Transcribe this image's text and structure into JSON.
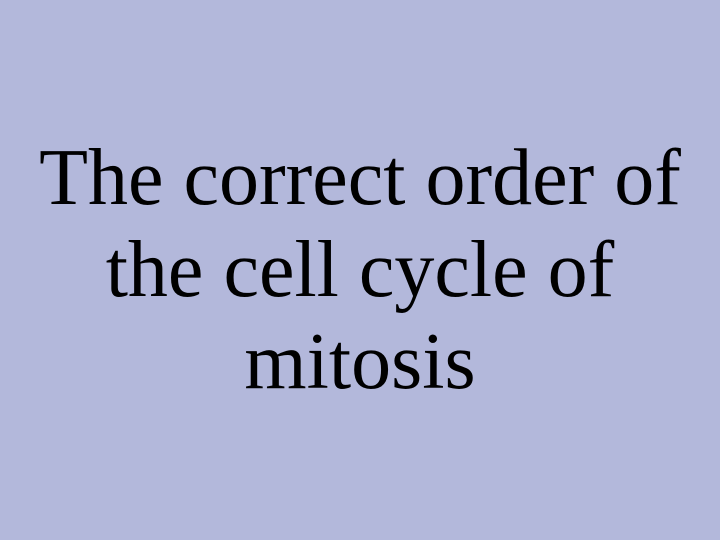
{
  "slide": {
    "background_color": "#b3b8db",
    "text_color": "#000000",
    "title": "The correct order of the cell cycle of mitosis",
    "title_fontsize": 80,
    "font_family": "Times New Roman"
  }
}
